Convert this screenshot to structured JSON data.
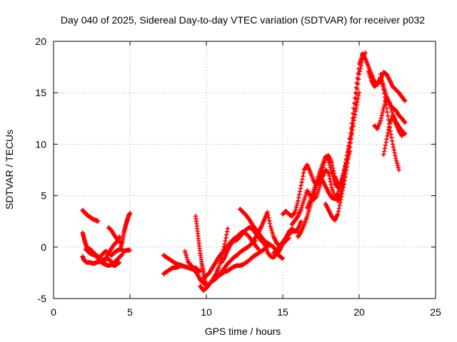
{
  "chart_data": {
    "type": "scatter",
    "title": "Day 040 of 2025, Sidereal Day-to-day VTEC variation (SDTVAR) for receiver p032",
    "xlabel": "GPS time / hours",
    "ylabel": "SDTVAR / TECUs",
    "xlim": [
      0,
      25
    ],
    "ylim": [
      -5,
      20
    ],
    "xticks": [
      "0",
      "5",
      "10",
      "15",
      "20",
      "25"
    ],
    "yticks": [
      "-5",
      "0",
      "5",
      "10",
      "15",
      "20"
    ],
    "grid": true,
    "marker": "plus",
    "color": "#ff0000",
    "series": [
      {
        "x": [
          1.9,
          2.0,
          2.1,
          2.2,
          2.4,
          2.6,
          2.8,
          2.9
        ],
        "y": [
          3.6,
          3.4,
          3.3,
          3.1,
          2.9,
          2.7,
          2.6,
          2.5
        ]
      },
      {
        "x": [
          1.9,
          2.0,
          2.1,
          2.2,
          2.4,
          2.6,
          2.8,
          3.0,
          3.2,
          3.4,
          3.6,
          3.8,
          4.0,
          4.2,
          4.4,
          4.6,
          4.8,
          5.0
        ],
        "y": [
          1.4,
          0.8,
          0.3,
          -0.1,
          -0.2,
          -0.5,
          -0.8,
          -1.0,
          -0.7,
          -0.4,
          -0.6,
          -0.8,
          -0.5,
          -0.3,
          -0.2,
          -0.4,
          -0.3,
          -0.3
        ]
      },
      {
        "x": [
          1.9,
          2.0,
          2.2,
          2.4,
          2.6,
          2.8,
          3.0,
          3.2,
          3.4,
          3.6,
          3.8,
          4.0,
          4.2,
          4.3
        ],
        "y": [
          -0.9,
          -1.3,
          -1.5,
          -1.5,
          -1.6,
          -1.5,
          -1.4,
          -1.5,
          -1.7,
          -1.8,
          -1.7,
          -1.8,
          -1.6,
          -1.5
        ]
      },
      {
        "x": [
          2.1,
          2.3,
          2.5,
          2.7,
          2.9,
          3.1,
          3.3,
          3.5,
          3.7,
          3.9,
          4.1,
          4.3,
          4.5
        ],
        "y": [
          -0.2,
          -0.5,
          -0.7,
          -0.8,
          -1.1,
          -1.3,
          -1.2,
          -1.1,
          -1.3,
          -1.6,
          -1.3,
          -1.0,
          -0.7
        ]
      },
      {
        "x": [
          3.2,
          3.4,
          3.6,
          3.8,
          4.0,
          4.2,
          4.3
        ],
        "y": [
          -1.6,
          -1.2,
          -0.6,
          -0.1,
          0.3,
          0.6,
          1.0
        ]
      },
      {
        "x": [
          3.6,
          3.8,
          4.0,
          4.2,
          4.4
        ],
        "y": [
          1.9,
          1.6,
          1.1,
          0.7,
          0.4
        ]
      },
      {
        "x": [
          4.4,
          4.5,
          4.6,
          4.7,
          4.8,
          4.9,
          5.0
        ],
        "y": [
          -0.1,
          0.6,
          1.4,
          2.0,
          2.5,
          3.0,
          3.3
        ]
      },
      {
        "x": [
          7.2,
          7.4,
          7.6,
          7.8,
          8.0,
          8.2,
          8.4,
          8.6,
          8.8,
          9.0,
          9.2,
          9.4,
          9.6
        ],
        "y": [
          -0.8,
          -1.0,
          -1.2,
          -1.4,
          -1.6,
          -1.7,
          -1.8,
          -1.9,
          -2.0,
          -2.1,
          -2.2,
          -2.3,
          -2.3
        ]
      },
      {
        "x": [
          7.2,
          7.4,
          7.6,
          7.8,
          8.0,
          8.2,
          8.4,
          8.6,
          8.8,
          9.0,
          9.2,
          9.4
        ],
        "y": [
          -2.6,
          -2.4,
          -2.2,
          -2.0,
          -2.0,
          -1.9,
          -1.8,
          -1.9,
          -2.0,
          -1.9,
          -2.0,
          -2.1
        ]
      },
      {
        "x": [
          8.6,
          8.8,
          9.0,
          9.2,
          9.4,
          9.6,
          9.8,
          10.0,
          10.2,
          10.4,
          10.6,
          10.8,
          11.0,
          11.2,
          11.4
        ],
        "y": [
          -0.4,
          -1.4,
          -1.8,
          -2.2,
          -2.6,
          -3.2,
          -3.5,
          -3.7,
          -3.6,
          -3.2,
          -2.7,
          -2.0,
          -1.0,
          0.3,
          1.8
        ]
      },
      {
        "x": [
          9.3,
          9.4,
          9.5,
          9.6,
          9.7,
          9.8,
          9.9,
          10.0
        ],
        "y": [
          3.0,
          1.8,
          0.6,
          -0.6,
          -1.6,
          -2.4,
          -3.3,
          -3.9
        ]
      },
      {
        "x": [
          9.6,
          9.8,
          10.0,
          10.2,
          10.4,
          10.6,
          10.8,
          11.0,
          11.2,
          11.4,
          11.6,
          11.8,
          12.0,
          12.2,
          12.4,
          12.6,
          12.8,
          13.0,
          13.2,
          13.4,
          13.6,
          13.8
        ],
        "y": [
          -3.8,
          -4.2,
          -4.0,
          -3.6,
          -3.2,
          -3.0,
          -2.8,
          -2.6,
          -2.4,
          -2.3,
          -2.1,
          -1.9,
          -1.8,
          -1.8,
          -1.7,
          -1.5,
          -1.3,
          -1.0,
          -0.8,
          -0.6,
          -0.4,
          -0.2
        ]
      },
      {
        "x": [
          9.8,
          10.0,
          10.2,
          10.4,
          10.6,
          10.8,
          11.0,
          11.2,
          11.4,
          11.6,
          11.8,
          12.0,
          12.2,
          12.4,
          12.6,
          12.8,
          13.0,
          13.2,
          13.4
        ],
        "y": [
          -3.0,
          -2.8,
          -2.5,
          -2.0,
          -1.5,
          -1.0,
          -0.6,
          -0.3,
          0.1,
          0.5,
          0.8,
          1.0,
          1.3,
          1.5,
          1.3,
          1.0,
          0.6,
          0.2,
          -0.2
        ]
      },
      {
        "x": [
          10.4,
          10.6,
          10.8,
          11.0,
          11.2,
          11.4,
          11.6,
          11.8,
          12.0,
          12.2,
          12.4,
          12.6,
          12.8,
          13.0,
          13.2
        ],
        "y": [
          -3.3,
          -3.1,
          -2.8,
          -2.4,
          -2.0,
          -1.6,
          -1.3,
          -1.0,
          -0.8,
          -0.5,
          -0.3,
          -0.1,
          0.1,
          0.4,
          0.6
        ]
      },
      {
        "x": [
          11.0,
          11.2,
          11.4,
          11.6,
          11.8,
          12.0,
          12.2,
          12.4,
          12.6,
          12.8,
          13.0,
          13.2,
          13.4,
          13.6,
          13.8,
          14.0
        ],
        "y": [
          -1.5,
          -1.0,
          -0.3,
          0.3,
          0.6,
          0.7,
          1.0,
          1.4,
          1.7,
          1.9,
          1.8,
          1.4,
          1.0,
          0.6,
          0.3,
          0.0
        ]
      },
      {
        "x": [
          12.2,
          12.4,
          12.6,
          12.8,
          13.0,
          13.2,
          13.4,
          13.6,
          13.8,
          14.0,
          14.2,
          14.4,
          14.6,
          14.8,
          15.0
        ],
        "y": [
          3.7,
          3.4,
          3.1,
          2.7,
          2.2,
          1.8,
          1.4,
          1.0,
          0.6,
          0.4,
          0.2,
          0.0,
          -0.4,
          -0.9,
          -1.1
        ]
      },
      {
        "x": [
          13.0,
          13.2,
          13.4,
          13.6,
          13.8,
          14.0,
          14.2,
          14.4,
          14.6,
          14.8,
          15.0,
          15.2,
          15.4
        ],
        "y": [
          0.5,
          0.9,
          1.4,
          2.0,
          2.7,
          3.4,
          2.0,
          1.0,
          0.4,
          0.1,
          0.3,
          0.6,
          0.9
        ]
      },
      {
        "x": [
          13.8,
          14.0,
          14.2,
          14.4,
          14.6,
          14.8,
          15.0,
          15.2,
          15.4,
          15.6,
          15.8,
          16.0,
          16.2
        ],
        "y": [
          0.3,
          -0.5,
          -0.9,
          -1.0,
          -0.7,
          -0.3,
          0.3,
          0.9,
          1.5,
          1.8,
          1.5,
          1.8,
          2.5
        ]
      },
      {
        "x": [
          14.4,
          14.6,
          14.8,
          15.0,
          15.2,
          15.4,
          15.6,
          15.8,
          16.0
        ],
        "y": [
          -0.6,
          -0.3,
          0.1,
          0.5,
          0.9,
          1.2,
          1.5,
          1.6,
          1.5
        ]
      },
      {
        "x": [
          15.0,
          15.2,
          15.4,
          15.6,
          15.8,
          16.0,
          16.2,
          16.4,
          16.6,
          16.8,
          17.0,
          17.2,
          17.4,
          17.6,
          17.8,
          18.0,
          18.2,
          18.4,
          18.6,
          18.8,
          19.0,
          19.2,
          19.4,
          19.6,
          19.8,
          20.0
        ],
        "y": [
          3.2,
          3.5,
          3.2,
          3.0,
          3.4,
          4.5,
          6.0,
          7.5,
          8.0,
          7.3,
          6.5,
          6.0,
          6.4,
          7.5,
          8.7,
          8.9,
          8.2,
          6.9,
          6.2,
          6.1,
          7.2,
          8.9,
          10.5,
          12.0,
          13.5,
          15.0
        ]
      },
      {
        "x": [
          15.6,
          15.8,
          16.0,
          16.2,
          16.4,
          16.6,
          16.8,
          17.0,
          17.2,
          17.4,
          17.6,
          17.8,
          18.0,
          18.2,
          18.4,
          18.6,
          18.8,
          19.0,
          19.2,
          19.4,
          19.6,
          19.8,
          20.0,
          20.2
        ],
        "y": [
          2.2,
          2.6,
          3.0,
          3.7,
          4.6,
          5.5,
          5.0,
          4.6,
          4.9,
          5.8,
          6.8,
          7.5,
          7.2,
          5.8,
          4.9,
          4.5,
          5.2,
          6.5,
          8.5,
          10.6,
          13.0,
          15.5,
          17.8,
          18.6
        ]
      },
      {
        "x": [
          16.0,
          16.2,
          16.4,
          16.6,
          16.8,
          17.0,
          17.2,
          17.4,
          17.6,
          17.8,
          18.0,
          18.2,
          18.4,
          18.6,
          18.8,
          19.0
        ],
        "y": [
          1.0,
          1.5,
          2.2,
          3.0,
          4.0,
          5.0,
          6.0,
          6.8,
          6.5,
          5.9,
          5.3,
          4.8,
          4.7,
          5.2,
          6.1,
          7.0
        ]
      },
      {
        "x": [
          16.6,
          16.8,
          17.0,
          17.2,
          17.4,
          17.6,
          17.8,
          18.0,
          18.2,
          18.4,
          18.6,
          18.8,
          19.0,
          19.2,
          19.4
        ],
        "y": [
          3.8,
          4.5,
          5.4,
          6.3,
          7.2,
          8.0,
          8.8,
          8.4,
          7.3,
          6.2,
          5.8,
          6.3,
          7.4,
          8.4,
          9.3
        ]
      },
      {
        "x": [
          17.8,
          18.0,
          18.2,
          18.4,
          18.6,
          18.8,
          19.0,
          19.2,
          19.4,
          19.6,
          19.8,
          20.0,
          20.2,
          20.4
        ],
        "y": [
          4.2,
          3.6,
          3.0,
          2.6,
          3.2,
          4.6,
          6.1,
          7.8,
          9.7,
          11.8,
          14.4,
          16.8,
          18.2,
          18.9
        ]
      },
      {
        "x": [
          20.2,
          20.4,
          20.6,
          20.8,
          21.0,
          21.2,
          21.4,
          21.6,
          21.8,
          22.0,
          22.2,
          22.4,
          22.6,
          22.8,
          23.0
        ],
        "y": [
          18.8,
          18.3,
          17.6,
          16.8,
          16.1,
          15.8,
          16.3,
          17.0,
          16.8,
          16.2,
          15.6,
          15.3,
          15.0,
          14.6,
          14.2
        ]
      },
      {
        "x": [
          20.6,
          20.8,
          21.0,
          21.2,
          21.4,
          21.6,
          21.8,
          22.0,
          22.2,
          22.4,
          22.6,
          22.8,
          23.0
        ],
        "y": [
          17.1,
          16.2,
          15.6,
          15.9,
          16.5,
          15.6,
          14.6,
          13.9,
          13.5,
          13.3,
          12.8,
          12.5,
          12.1
        ]
      },
      {
        "x": [
          21.0,
          21.2,
          21.4,
          21.6,
          21.8,
          22.0,
          22.2,
          22.4,
          22.6,
          22.8,
          23.0
        ],
        "y": [
          11.8,
          11.5,
          12.3,
          13.5,
          14.5,
          14.0,
          12.9,
          12.2,
          11.7,
          11.3,
          11.0
        ]
      },
      {
        "x": [
          21.4,
          21.6,
          21.8,
          22.0,
          22.2,
          22.4,
          22.6
        ],
        "y": [
          16.8,
          15.3,
          13.5,
          11.6,
          10.0,
          8.6,
          7.5
        ]
      },
      {
        "x": [
          21.6,
          21.8,
          22.0,
          22.2,
          22.4,
          22.6,
          22.8
        ],
        "y": [
          9.0,
          10.5,
          12.0,
          12.7,
          12.0,
          11.3,
          10.8
        ]
      }
    ]
  }
}
